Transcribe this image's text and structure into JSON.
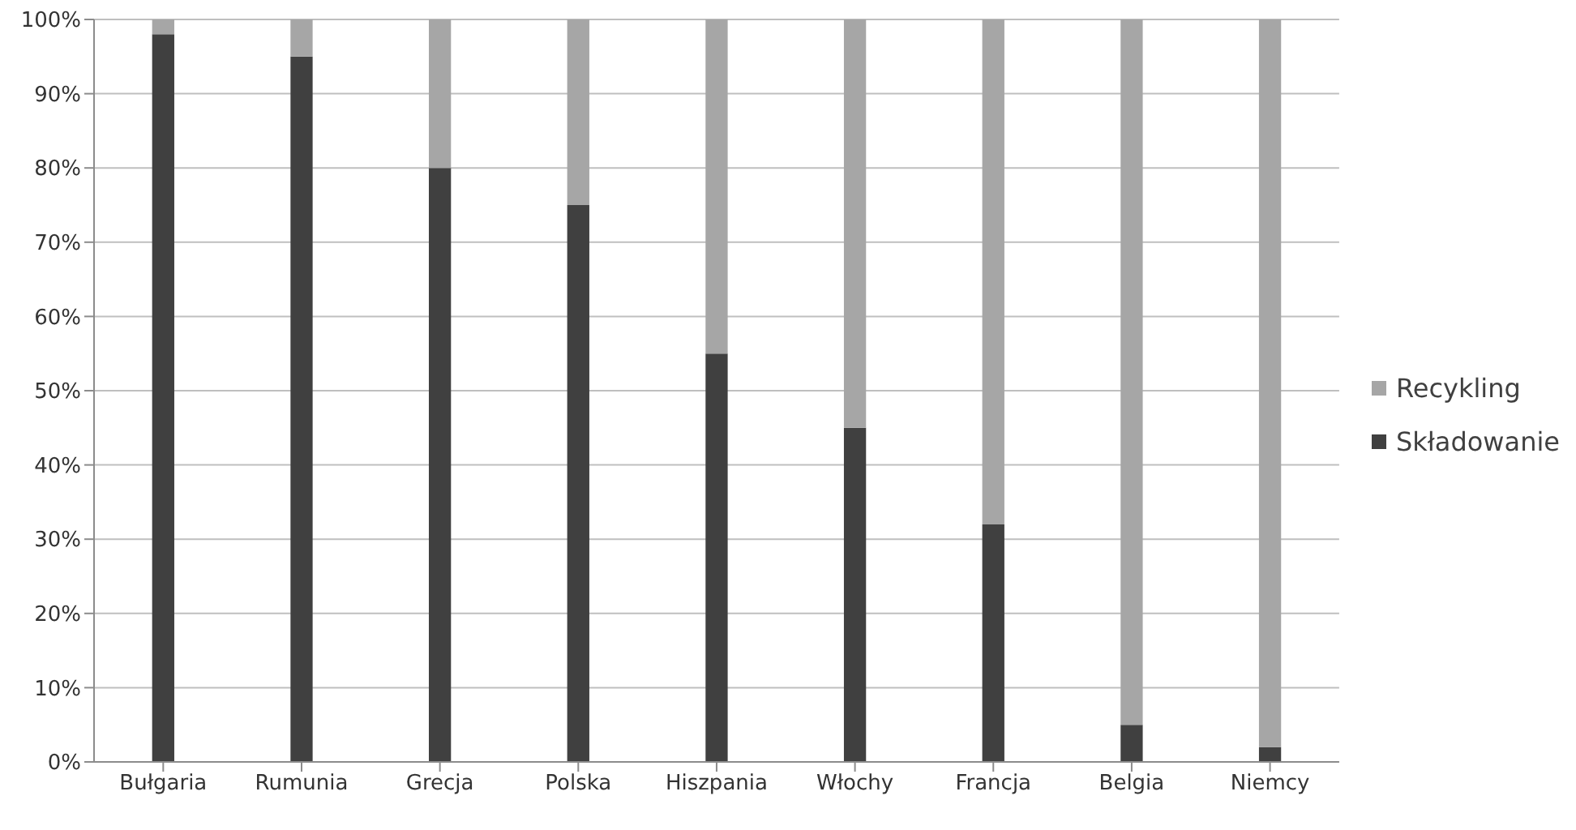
{
  "chart_data": {
    "type": "bar",
    "stacked": true,
    "categories": [
      "Bułgaria",
      "Rumunia",
      "Grecja",
      "Polska",
      "Hiszpania",
      "Włochy",
      "Francja",
      "Belgia",
      "Niemcy"
    ],
    "series": [
      {
        "name": "Składowanie",
        "color": "#404040",
        "values": [
          98,
          95,
          80,
          75,
          55,
          45,
          32,
          5,
          2
        ]
      },
      {
        "name": "Recykling",
        "color": "#a6a6a6",
        "values": [
          2,
          5,
          20,
          25,
          45,
          55,
          68,
          95,
          98
        ]
      }
    ],
    "ylim": [
      0,
      100
    ],
    "yticks": [
      {
        "value": 0,
        "label": "0%"
      },
      {
        "value": 10,
        "label": "10%"
      },
      {
        "value": 20,
        "label": "20%"
      },
      {
        "value": 30,
        "label": "30%"
      },
      {
        "value": 40,
        "label": "40%"
      },
      {
        "value": 50,
        "label": "50%"
      },
      {
        "value": 60,
        "label": "60%"
      },
      {
        "value": 70,
        "label": "70%"
      },
      {
        "value": 80,
        "label": "80%"
      },
      {
        "value": 90,
        "label": "90%"
      },
      {
        "value": 100,
        "label": "100%"
      }
    ],
    "grid": "y",
    "legend": "right"
  }
}
